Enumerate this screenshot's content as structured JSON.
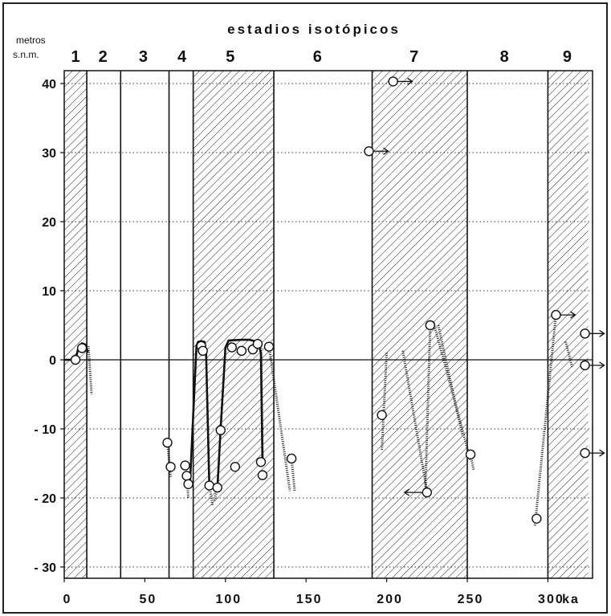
{
  "chart_data": {
    "type": "scatter",
    "title": "estadios isotópicos",
    "ylabel_line1": "metros",
    "ylabel_line2": "s.n.m.",
    "x_unit": "ka",
    "xlim": [
      0,
      325
    ],
    "ylim": [
      -32,
      42
    ],
    "x_ticks": [
      0,
      50,
      100,
      150,
      200,
      250,
      300
    ],
    "x_tick_labels": [
      "0",
      "50",
      "100",
      "150",
      "200",
      "250",
      "300"
    ],
    "y_ticks": [
      40,
      30,
      20,
      10,
      0,
      -10,
      -20,
      -30
    ],
    "y_tick_labels": [
      "40",
      "30",
      "20",
      "10",
      "0",
      "- 10",
      "- 20",
      "- 30"
    ],
    "y_gridlines": [
      40,
      30,
      20,
      10,
      -10,
      -20,
      -30
    ],
    "grid_style": "dotted",
    "stage_boundaries": [
      14,
      35,
      65,
      80,
      130,
      191,
      250,
      300
    ],
    "hatched_stages": [
      [
        0,
        14
      ],
      [
        80,
        130
      ],
      [
        191,
        250
      ],
      [
        300,
        325
      ]
    ],
    "stage_labels": [
      {
        "label": "1",
        "x": 7
      },
      {
        "label": "2",
        "x": 24
      },
      {
        "label": "3",
        "x": 49
      },
      {
        "label": "4",
        "x": 73
      },
      {
        "label": "5",
        "x": 103
      },
      {
        "label": "6",
        "x": 157
      },
      {
        "label": "7",
        "x": 217
      },
      {
        "label": "8",
        "x": 273
      },
      {
        "label": "9",
        "x": 312
      }
    ],
    "points": [
      {
        "x": 7,
        "y": 0
      },
      {
        "x": 11,
        "y": 1.7
      },
      {
        "x": 64,
        "y": -12
      },
      {
        "x": 66,
        "y": -15.5
      },
      {
        "x": 75,
        "y": -15.3
      },
      {
        "x": 76,
        "y": -16.8
      },
      {
        "x": 77,
        "y": -18
      },
      {
        "x": 85,
        "y": 2
      },
      {
        "x": 86,
        "y": 1.3
      },
      {
        "x": 90,
        "y": -18.2
      },
      {
        "x": 95,
        "y": -18.5
      },
      {
        "x": 97,
        "y": -10.2
      },
      {
        "x": 104,
        "y": 1.8
      },
      {
        "x": 106,
        "y": -15.5
      },
      {
        "x": 110,
        "y": 1.3
      },
      {
        "x": 117,
        "y": 1.5
      },
      {
        "x": 120,
        "y": 2.3
      },
      {
        "x": 122,
        "y": -14.8
      },
      {
        "x": 123,
        "y": -16.7
      },
      {
        "x": 127,
        "y": 1.9
      },
      {
        "x": 141,
        "y": -14.3
      },
      {
        "x": 189,
        "y": 30.2
      },
      {
        "x": 197,
        "y": -8
      },
      {
        "x": 204,
        "y": 40.3
      },
      {
        "x": 225,
        "y": -19.2
      },
      {
        "x": 227,
        "y": 5
      },
      {
        "x": 252,
        "y": -13.7
      },
      {
        "x": 293,
        "y": -23
      },
      {
        "x": 305,
        "y": 6.5
      },
      {
        "x": 323,
        "y": 3.8
      },
      {
        "x": 323,
        "y": -0.8
      },
      {
        "x": 323,
        "y": -13.5
      }
    ],
    "sea_level_curve": [
      [
        [
          0,
          0
        ],
        [
          7,
          0
        ],
        [
          8.5,
          1.5
        ],
        [
          11,
          2.4
        ],
        [
          13,
          2.2
        ],
        [
          14.5,
          1.2
        ]
      ],
      [
        [
          78,
          -18
        ],
        [
          82,
          2
        ],
        [
          83,
          2.6
        ],
        [
          85,
          2.7
        ],
        [
          87,
          2.6
        ],
        [
          88,
          1
        ],
        [
          90,
          -18.2
        ],
        [
          95,
          -18.5
        ],
        [
          97,
          -10
        ],
        [
          100,
          1.8
        ],
        [
          102,
          2.8
        ],
        [
          110,
          2.9
        ],
        [
          115,
          2.9
        ],
        [
          120,
          2.6
        ],
        [
          122,
          1
        ],
        [
          123,
          -15
        ]
      ]
    ],
    "uncertainty_bars": [
      [
        [
          15,
          2
        ],
        [
          17,
          -5
        ]
      ],
      [
        [
          64,
          -12
        ],
        [
          66,
          -17
        ]
      ],
      [
        [
          66,
          -15.5
        ],
        [
          67,
          -16
        ]
      ],
      [
        [
          76,
          -16.8
        ],
        [
          77,
          -20
        ]
      ],
      [
        [
          90,
          -18.2
        ],
        [
          92,
          -21
        ]
      ],
      [
        [
          95,
          -18.5
        ],
        [
          93,
          -20.5
        ]
      ],
      [
        [
          122,
          2
        ],
        [
          123,
          -15
        ]
      ],
      [
        [
          127,
          2
        ],
        [
          140,
          -19
        ]
      ],
      [
        [
          141,
          -14.3
        ],
        [
          143,
          -19
        ]
      ],
      [
        [
          200,
          1
        ],
        [
          197,
          -13
        ]
      ],
      [
        [
          210,
          1.3
        ],
        [
          225,
          -19
        ]
      ],
      [
        [
          227,
          5
        ],
        [
          224,
          -19
        ]
      ],
      [
        [
          229,
          5.5
        ],
        [
          252,
          -14.5
        ]
      ],
      [
        [
          232,
          5
        ],
        [
          247,
          -11
        ]
      ],
      [
        [
          252,
          -13.7
        ],
        [
          254,
          -16
        ]
      ],
      [
        [
          305,
          6.5
        ],
        [
          292,
          -24
        ]
      ],
      [
        [
          311,
          2.6
        ],
        [
          315,
          -1
        ]
      ]
    ],
    "arrows": [
      {
        "x": 190,
        "y": 30.2,
        "dir": "right"
      },
      {
        "x": 205,
        "y": 40.3,
        "dir": "right"
      },
      {
        "x": 222,
        "y": -19.2,
        "dir": "left"
      },
      {
        "x": 306,
        "y": 6.5,
        "dir": "right"
      },
      {
        "x": 324,
        "y": 3.8,
        "dir": "right"
      },
      {
        "x": 324,
        "y": -0.8,
        "dir": "right"
      },
      {
        "x": 324,
        "y": -13.5,
        "dir": "right"
      }
    ],
    "colors": {
      "ink": "#111111",
      "background": "#ffffff"
    }
  }
}
